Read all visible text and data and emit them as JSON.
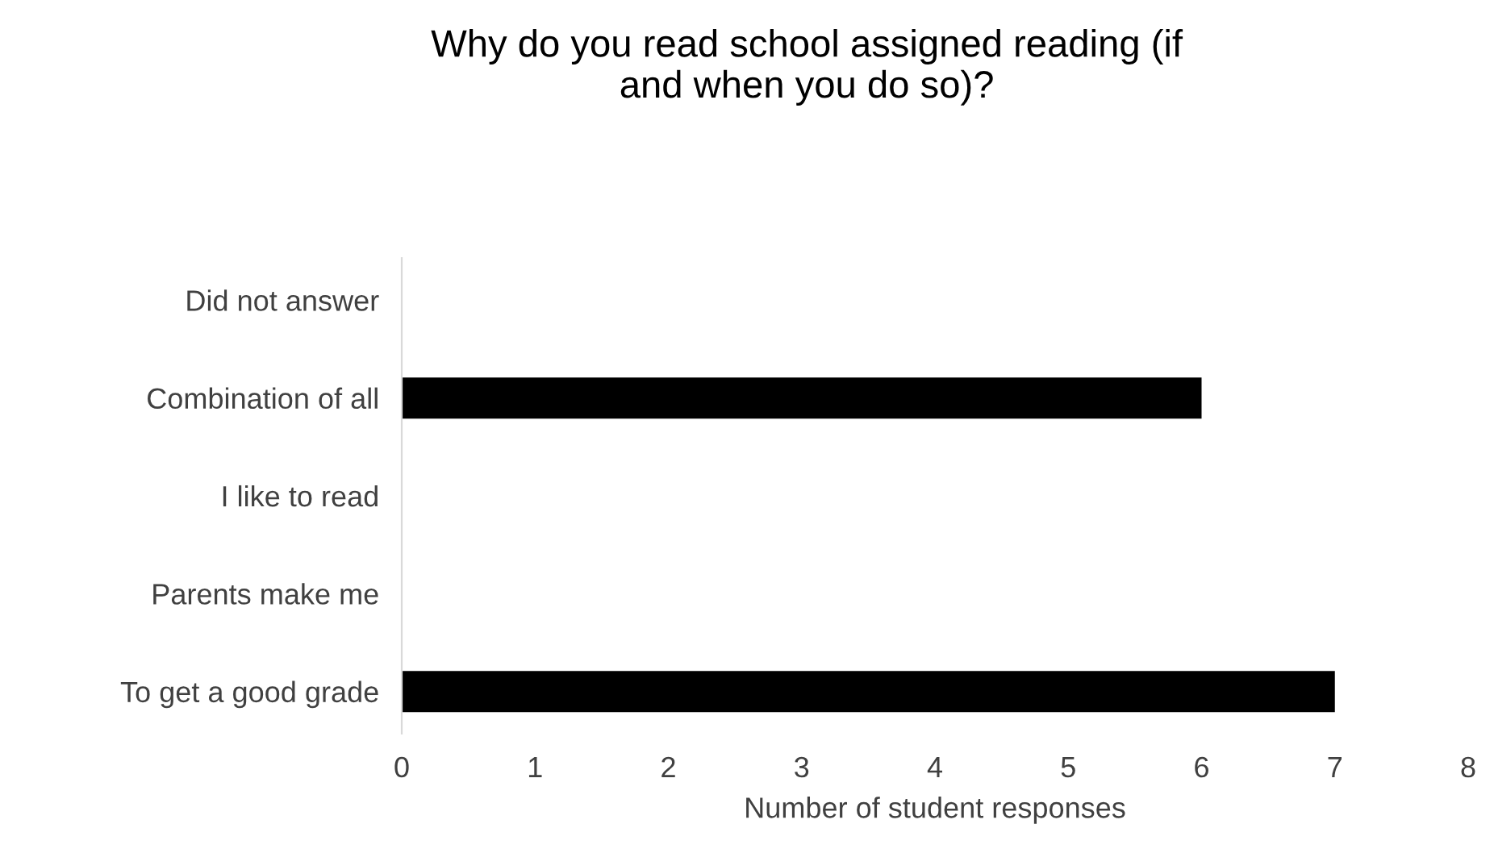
{
  "chart_data": {
    "type": "bar",
    "orientation": "horizontal",
    "title": "Why do you read school assigned reading (if and when you do so)?",
    "xlabel": "Number of student responses",
    "categories": [
      "Did not answer",
      "Combination of all",
      "I like to read",
      "Parents make me",
      "To get a good grade"
    ],
    "values": [
      0,
      6,
      0,
      0,
      7
    ],
    "color": "#000000",
    "xlim": [
      0,
      8
    ],
    "xticks": [
      0,
      1,
      2,
      3,
      4,
      5,
      6,
      7,
      8
    ],
    "grid": false,
    "legend": false
  }
}
